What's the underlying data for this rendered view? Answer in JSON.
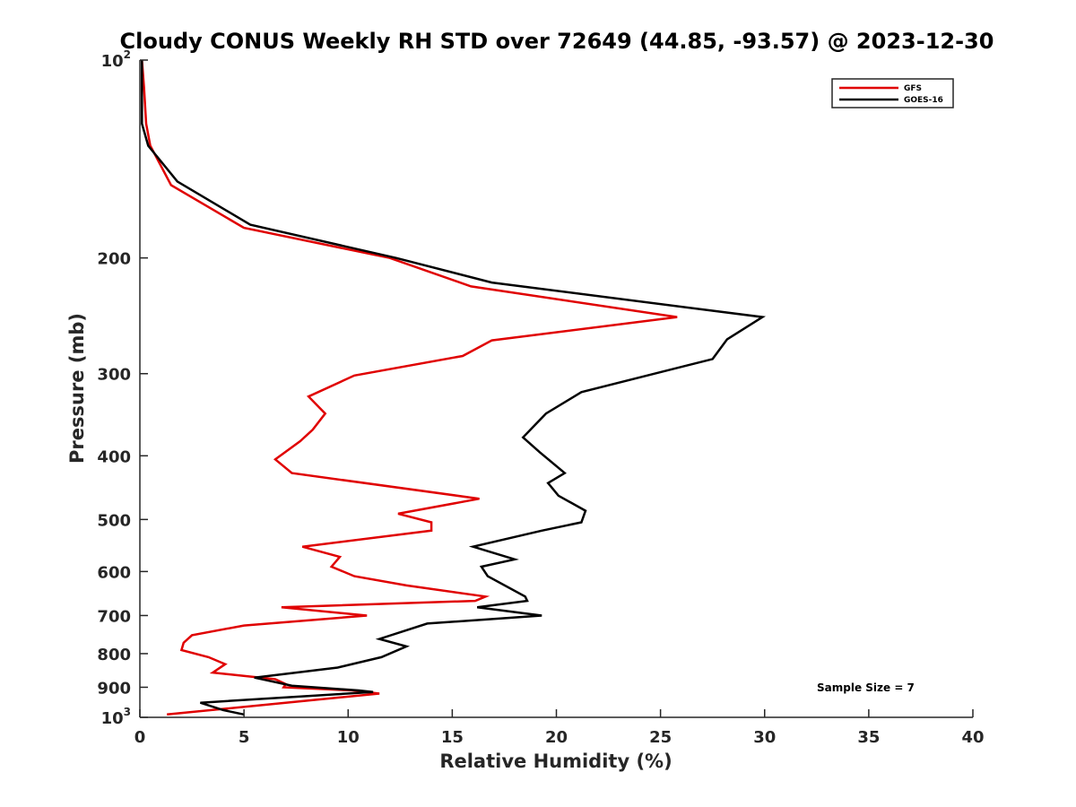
{
  "chart_data": {
    "type": "line",
    "title": "Cloudy CONUS Weekly RH STD over 72649 (44.85, -93.57) @ 2023-12-30",
    "xlabel": "Relative Humidity (%)",
    "ylabel": "Pressure (mb)",
    "xlim": [
      0,
      40
    ],
    "ylim": [
      100,
      1000
    ],
    "y_scale": "log",
    "y_reversed": true,
    "x_ticks": [
      0,
      5,
      10,
      15,
      20,
      25,
      30,
      35,
      40
    ],
    "x_tick_labels": [
      "0",
      "5",
      "10",
      "15",
      "20",
      "25",
      "30",
      "35",
      "40"
    ],
    "y_ticks": [
      {
        "value": 100,
        "base": "10",
        "sup": "2"
      },
      {
        "value": 200,
        "base": "200",
        "sup": ""
      },
      {
        "value": 300,
        "base": "300",
        "sup": ""
      },
      {
        "value": 400,
        "base": "400",
        "sup": ""
      },
      {
        "value": 500,
        "base": "500",
        "sup": ""
      },
      {
        "value": 600,
        "base": "600",
        "sup": ""
      },
      {
        "value": 700,
        "base": "700",
        "sup": ""
      },
      {
        "value": 800,
        "base": "800",
        "sup": ""
      },
      {
        "value": 900,
        "base": "900",
        "sup": ""
      },
      {
        "value": 1000,
        "base": "10",
        "sup": "3"
      }
    ],
    "grid": false,
    "legend_position": "top-right",
    "annotation": "Sample Size = 7",
    "series": [
      {
        "name": "GFS",
        "color": "#e00000",
        "points": [
          [
            0.1,
            100
          ],
          [
            0.2,
            110
          ],
          [
            0.3,
            125
          ],
          [
            0.5,
            135
          ],
          [
            1.5,
            155
          ],
          [
            5.0,
            180
          ],
          [
            12.0,
            200
          ],
          [
            15.9,
            221
          ],
          [
            25.8,
            246
          ],
          [
            16.9,
            267
          ],
          [
            15.5,
            282
          ],
          [
            10.3,
            302
          ],
          [
            8.1,
            325
          ],
          [
            8.9,
            345
          ],
          [
            8.3,
            365
          ],
          [
            7.7,
            380
          ],
          [
            6.5,
            405
          ],
          [
            7.3,
            425
          ],
          [
            16.3,
            465
          ],
          [
            12.4,
            490
          ],
          [
            14.0,
            505
          ],
          [
            14.0,
            520
          ],
          [
            7.8,
            550
          ],
          [
            9.6,
            570
          ],
          [
            9.2,
            590
          ],
          [
            10.3,
            610
          ],
          [
            12.8,
            630
          ],
          [
            16.6,
            655
          ],
          [
            16.1,
            665
          ],
          [
            6.8,
            680
          ],
          [
            10.9,
            700
          ],
          [
            5.0,
            725
          ],
          [
            2.5,
            750
          ],
          [
            2.1,
            770
          ],
          [
            2.0,
            790
          ],
          [
            3.3,
            810
          ],
          [
            4.1,
            830
          ],
          [
            3.5,
            855
          ],
          [
            6.5,
            875
          ],
          [
            7.0,
            890
          ],
          [
            6.9,
            900
          ],
          [
            10.2,
            910
          ],
          [
            11.5,
            920
          ],
          [
            7.0,
            950
          ],
          [
            1.3,
            990
          ]
        ]
      },
      {
        "name": "GOES-16",
        "color": "#000000",
        "points": [
          [
            0.1,
            100
          ],
          [
            0.1,
            110
          ],
          [
            0.1,
            125
          ],
          [
            0.4,
            135
          ],
          [
            1.8,
            153
          ],
          [
            5.3,
            178
          ],
          [
            12.3,
            200
          ],
          [
            16.9,
            218
          ],
          [
            29.9,
            246
          ],
          [
            28.2,
            266
          ],
          [
            27.5,
            285
          ],
          [
            21.2,
            320
          ],
          [
            19.5,
            345
          ],
          [
            18.4,
            375
          ],
          [
            19.2,
            395
          ],
          [
            20.4,
            425
          ],
          [
            19.6,
            440
          ],
          [
            20.1,
            460
          ],
          [
            21.4,
            485
          ],
          [
            21.2,
            505
          ],
          [
            19.3,
            520
          ],
          [
            16.0,
            550
          ],
          [
            18.0,
            575
          ],
          [
            16.4,
            590
          ],
          [
            16.7,
            610
          ],
          [
            18.5,
            655
          ],
          [
            18.6,
            665
          ],
          [
            16.2,
            680
          ],
          [
            19.3,
            700
          ],
          [
            13.8,
            720
          ],
          [
            11.5,
            760
          ],
          [
            12.8,
            780
          ],
          [
            11.6,
            810
          ],
          [
            9.5,
            840
          ],
          [
            5.5,
            870
          ],
          [
            7.3,
            895
          ],
          [
            10.5,
            910
          ],
          [
            11.2,
            915
          ],
          [
            2.9,
            950
          ],
          [
            4.0,
            975
          ],
          [
            5.0,
            990
          ]
        ]
      }
    ]
  }
}
